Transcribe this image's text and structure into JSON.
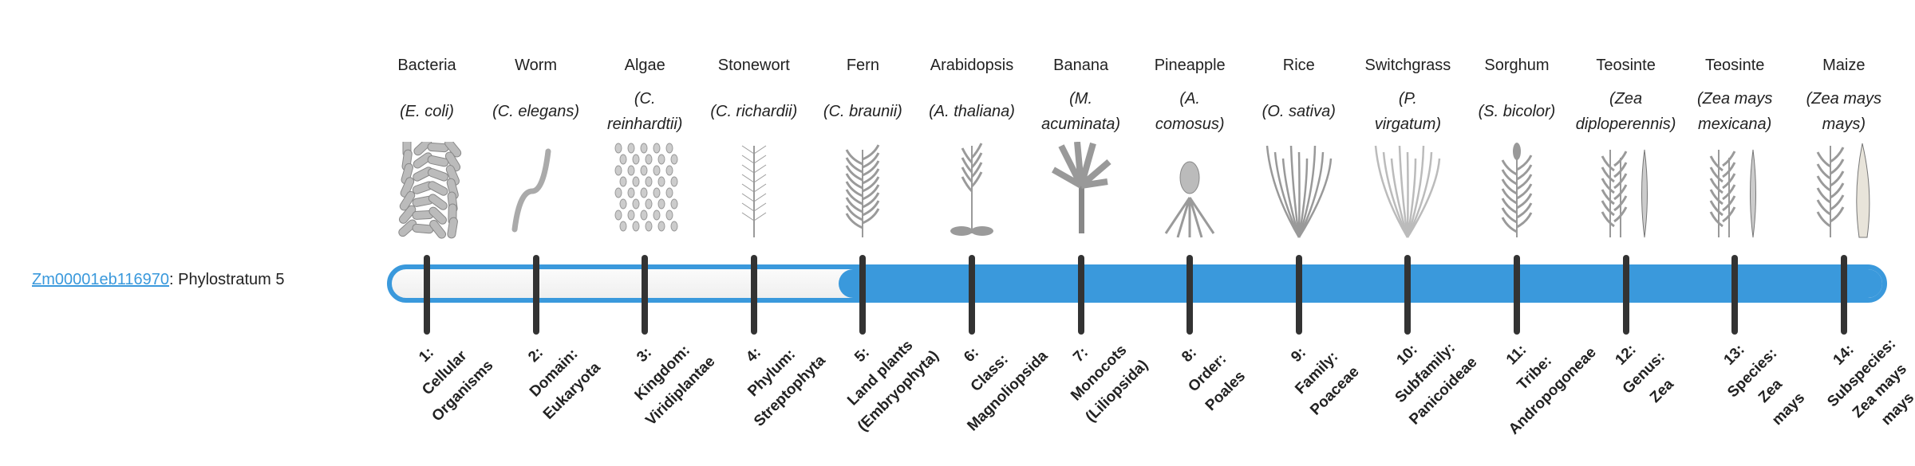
{
  "gene": {
    "id": "Zm00001eb116970",
    "suffix": ": Phylostratum 5"
  },
  "phylostratum": 5,
  "colors": {
    "accent": "#3a99dc",
    "tick": "#333333",
    "unfilled": "#f5f5f5"
  },
  "organisms": [
    {
      "common": "Bacteria",
      "sci": [
        "(E. coli)"
      ],
      "icon": "bacteria-icon",
      "stratum": [
        "1:",
        "Cellular",
        "Organisms"
      ]
    },
    {
      "common": "Worm",
      "sci": [
        "(C. elegans)"
      ],
      "icon": "worm-icon",
      "stratum": [
        "2:",
        "Domain:",
        "Eukaryota"
      ]
    },
    {
      "common": "Algae",
      "sci": [
        "(C.",
        "reinhardtii)"
      ],
      "icon": "algae-icon",
      "stratum": [
        "3:",
        "Kingdom:",
        "Viridiplantae"
      ]
    },
    {
      "common": "Stonewort",
      "sci": [
        "(C. richardii)"
      ],
      "icon": "stonewort-icon",
      "stratum": [
        "4:",
        "Phylum:",
        "Streptophyta"
      ]
    },
    {
      "common": "Fern",
      "sci": [
        "(C. braunii)"
      ],
      "icon": "fern-icon",
      "stratum": [
        "5:",
        "Land plants",
        "(Embryophyta)"
      ]
    },
    {
      "common": "Arabidopsis",
      "sci": [
        "(A. thaliana)"
      ],
      "icon": "arabidopsis-icon",
      "stratum": [
        "6:",
        "Class:",
        "Magnoliopsida"
      ]
    },
    {
      "common": "Banana",
      "sci": [
        "(M.",
        "acuminata)"
      ],
      "icon": "banana-icon",
      "stratum": [
        "7:",
        "Monocots",
        "(Liliopsida)"
      ]
    },
    {
      "common": "Pineapple",
      "sci": [
        "(A.",
        "comosus)"
      ],
      "icon": "pineapple-icon",
      "stratum": [
        "8:",
        "Order:",
        "Poales"
      ]
    },
    {
      "common": "Rice",
      "sci": [
        "(O. sativa)"
      ],
      "icon": "rice-icon",
      "stratum": [
        "9:",
        "Family:",
        "Poaceae"
      ]
    },
    {
      "common": "Switchgrass",
      "sci": [
        "(P.",
        "virgatum)"
      ],
      "icon": "switchgrass-icon",
      "stratum": [
        "10:",
        "Subfamily:",
        "Panicoideae"
      ]
    },
    {
      "common": "Sorghum",
      "sci": [
        "(S. bicolor)"
      ],
      "icon": "sorghum-icon",
      "stratum": [
        "11:",
        "Tribe:",
        "Andropogoneae"
      ]
    },
    {
      "common": "Teosinte",
      "sci": [
        "(Zea",
        "diploperennis)"
      ],
      "icon": "teosinte-icon",
      "stratum": [
        "12:",
        "Genus:",
        "Zea"
      ]
    },
    {
      "common": "Teosinte",
      "sci": [
        "(Zea mays",
        "mexicana)"
      ],
      "icon": "teosinte-icon",
      "stratum": [
        "13:",
        "Species:",
        "Zea",
        "mays"
      ]
    },
    {
      "common": "Maize",
      "sci": [
        "(Zea mays",
        "mays)"
      ],
      "icon": "maize-icon",
      "stratum": [
        "14:",
        "Subspecies:",
        "Zea mays",
        "mays"
      ]
    }
  ]
}
